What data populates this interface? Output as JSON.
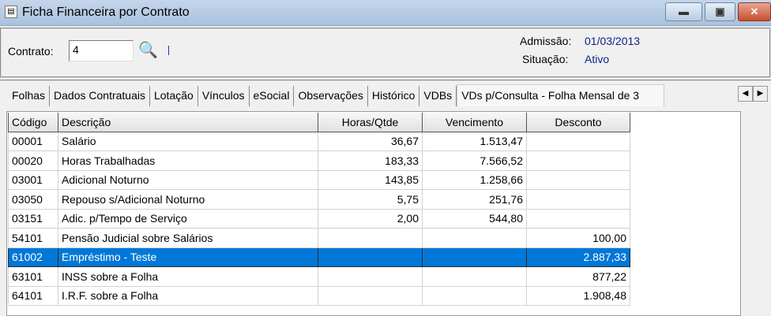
{
  "window": {
    "title": "Ficha Financeira por Contrato",
    "minimize": "▬",
    "maximize": "▣",
    "close": "✕"
  },
  "header": {
    "contrato_label": "Contrato:",
    "contrato_value": "4",
    "admissao_label": "Admissão:",
    "admissao_value": "01/03/2013",
    "situacao_label": "Situação:",
    "situacao_value": "Ativo"
  },
  "tabs": [
    "Folhas",
    "Dados Contratuais",
    "Lotação",
    "Vínculos",
    "eSocial",
    "Observações",
    "Histórico",
    "VDBs",
    "VDs p/Consulta - Folha Mensal de 3"
  ],
  "grid": {
    "columns": [
      "Código",
      "Descrição",
      "Horas/Qtde",
      "Vencimento",
      "Desconto"
    ],
    "rows": [
      [
        "00001",
        "Salário",
        "36,67",
        "1.513,47",
        ""
      ],
      [
        "00020",
        "Horas Trabalhadas",
        "183,33",
        "7.566,52",
        ""
      ],
      [
        "03001",
        "Adicional Noturno",
        "143,85",
        "1.258,66",
        ""
      ],
      [
        "03050",
        "Repouso s/Adicional Noturno",
        "5,75",
        "251,76",
        ""
      ],
      [
        "03151",
        "Adic. p/Tempo de Serviço",
        "2,00",
        "544,80",
        ""
      ],
      [
        "54101",
        "Pensão Judicial sobre Salários",
        "",
        "",
        "100,00"
      ],
      [
        "61002",
        "Empréstimo - Teste",
        "",
        "",
        "2.887,33"
      ],
      [
        "63101",
        "INSS sobre a Folha",
        "",
        "",
        "877,22"
      ],
      [
        "64101",
        "I.R.F. sobre a Folha",
        "",
        "",
        "1.908,48"
      ]
    ],
    "selected_row": 6
  },
  "colors": {
    "selection": "#0078d7",
    "value_text": "#0b1f8a"
  }
}
